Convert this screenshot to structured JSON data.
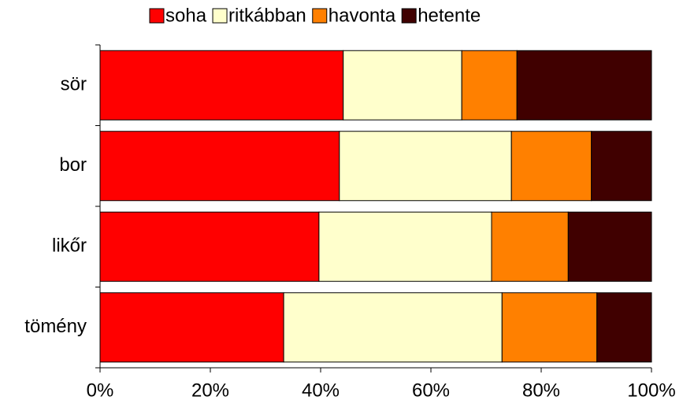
{
  "chart_data": {
    "type": "stacked-bar-horizontal",
    "categories": [
      "sör",
      "bor",
      "likőr",
      "tömény"
    ],
    "series": [
      {
        "name": "soha",
        "color": "#ff0000",
        "values": [
          44.1,
          43.4,
          39.7,
          33.3
        ]
      },
      {
        "name": "ritkábban",
        "color": "#ffffcc",
        "values": [
          21.5,
          31.2,
          31.3,
          39.6
        ]
      },
      {
        "name": "havonta",
        "color": "#ff8000",
        "values": [
          10,
          14.5,
          13.9,
          17.2
        ]
      },
      {
        "name": "hetente",
        "color": "#400000",
        "values": [
          24.4,
          10.9,
          15.1,
          9.9
        ]
      }
    ],
    "xlim": [
      0,
      100
    ],
    "xticks": [
      {
        "value": 0,
        "label": "0%"
      },
      {
        "value": 20,
        "label": "20%"
      },
      {
        "value": 40,
        "label": "40%"
      },
      {
        "value": 60,
        "label": "60%"
      },
      {
        "value": 80,
        "label": "80%"
      },
      {
        "value": 100,
        "label": "100%"
      }
    ],
    "legend": "top"
  }
}
